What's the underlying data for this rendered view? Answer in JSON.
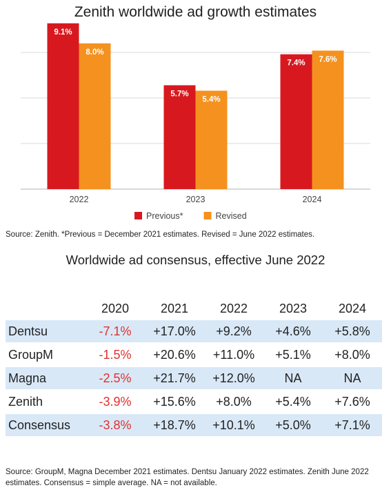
{
  "chart_data": {
    "type": "bar",
    "title": "Zenith worldwide ad growth estimates",
    "categories": [
      "2022",
      "2023",
      "2024"
    ],
    "series": [
      {
        "name": "Previous*",
        "color": "#d7191f",
        "values": [
          9.1,
          5.7,
          7.4
        ],
        "labels": [
          "9.1%",
          "5.7%",
          "7.4%"
        ]
      },
      {
        "name": "Revised",
        "color": "#f5911e",
        "values": [
          8.0,
          5.4,
          7.6
        ],
        "labels": [
          "8.0%",
          "5.4%",
          "7.6%"
        ]
      }
    ],
    "ylim": [
      0,
      10
    ],
    "grid": true,
    "legend_position": "bottom"
  },
  "chart_source": "Source: Zenith. *Previous = December 2021 estimates. Revised = June 2022 estimates.",
  "table": {
    "title": "Worldwide ad consensus, effective June 2022",
    "columns": [
      "",
      "2020",
      "2021",
      "2022",
      "2023",
      "2024"
    ],
    "rows": [
      {
        "name": "Dentsu",
        "values": [
          "-7.1%",
          "+17.0%",
          "+9.2%",
          "+4.6%",
          "+5.8%"
        ]
      },
      {
        "name": "GroupM",
        "values": [
          "-1.5%",
          "+20.6%",
          "+11.0%",
          "+5.1%",
          "+8.0%"
        ]
      },
      {
        "name": "Magna",
        "values": [
          "-2.5%",
          "+21.7%",
          "+12.0%",
          "NA",
          "NA"
        ]
      },
      {
        "name": "Zenith",
        "values": [
          "-3.9%",
          "+15.6%",
          "+8.0%",
          "+5.4%",
          "+7.6%"
        ]
      },
      {
        "name": "Consensus",
        "values": [
          "-3.8%",
          "+18.7%",
          "+10.1%",
          "+5.0%",
          "+7.1%"
        ]
      }
    ],
    "negative_color": "#e0312d",
    "shade_color": "#d9e8f7",
    "source": "Source: GroupM, Magna December 2021 estimates. Dentsu January 2022 estimates. Zenith June 2022 estimates. Consensus = simple average. NA = not available."
  }
}
